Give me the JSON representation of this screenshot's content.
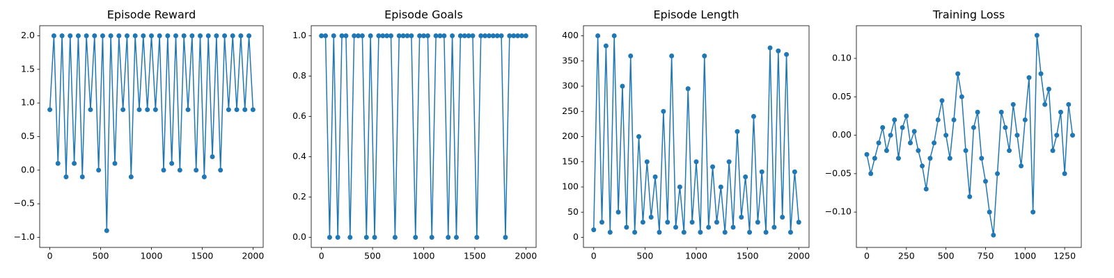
{
  "chart_data": [
    {
      "type": "line",
      "title": "Episode Reward",
      "color": "#1f77b4",
      "x": [
        0,
        40,
        80,
        120,
        160,
        200,
        240,
        280,
        320,
        360,
        400,
        440,
        480,
        520,
        560,
        600,
        640,
        680,
        720,
        760,
        800,
        840,
        880,
        920,
        960,
        1000,
        1040,
        1080,
        1120,
        1160,
        1200,
        1240,
        1280,
        1320,
        1360,
        1400,
        1440,
        1480,
        1520,
        1560,
        1600,
        1640,
        1680,
        1720,
        1760,
        1800,
        1840,
        1880,
        1920,
        1960,
        2000
      ],
      "values": [
        0.9,
        2.0,
        0.1,
        2.0,
        -0.1,
        2.0,
        0.1,
        2.0,
        -0.1,
        2.0,
        0.9,
        2.0,
        0.0,
        2.0,
        -0.9,
        2.0,
        0.1,
        2.0,
        0.9,
        2.0,
        -0.1,
        2.0,
        0.9,
        2.0,
        0.9,
        2.0,
        0.9,
        2.0,
        0.0,
        2.0,
        0.1,
        2.0,
        0.0,
        2.0,
        0.9,
        2.0,
        0.0,
        2.0,
        -0.1,
        2.0,
        0.2,
        2.0,
        0.0,
        2.0,
        0.9,
        2.0,
        0.9,
        2.0,
        0.9,
        2.0,
        0.9
      ],
      "xlim": [
        -100,
        2100
      ],
      "ylim": [
        -1.15,
        2.15
      ],
      "xticks": [
        0,
        500,
        1000,
        1500,
        2000
      ],
      "yticks": [
        {
          "value": -1.0,
          "label": "−1.0"
        },
        {
          "value": -0.5,
          "label": "−0.5"
        },
        {
          "value": 0.0,
          "label": "0.0"
        },
        {
          "value": 0.5,
          "label": "0.5"
        },
        {
          "value": 1.0,
          "label": "1.0"
        },
        {
          "value": 1.5,
          "label": "1.5"
        },
        {
          "value": 2.0,
          "label": "2.0"
        }
      ]
    },
    {
      "type": "line",
      "title": "Episode Goals",
      "color": "#1f77b4",
      "x": [
        0,
        40,
        80,
        120,
        160,
        200,
        240,
        280,
        320,
        360,
        400,
        440,
        480,
        520,
        560,
        600,
        640,
        680,
        720,
        760,
        800,
        840,
        880,
        920,
        960,
        1000,
        1040,
        1080,
        1120,
        1160,
        1200,
        1240,
        1280,
        1320,
        1360,
        1400,
        1440,
        1480,
        1520,
        1560,
        1600,
        1640,
        1680,
        1720,
        1760,
        1800,
        1840,
        1880,
        1920,
        1960,
        2000
      ],
      "values": [
        1,
        1,
        0,
        1,
        0,
        1,
        1,
        0,
        1,
        1,
        1,
        0,
        1,
        0,
        1,
        1,
        1,
        1,
        0,
        1,
        1,
        1,
        1,
        0,
        1,
        1,
        1,
        0,
        1,
        1,
        1,
        0,
        1,
        0,
        1,
        1,
        1,
        1,
        0,
        1,
        1,
        1,
        1,
        1,
        1,
        0,
        1,
        1,
        1,
        1,
        1
      ],
      "xlim": [
        -100,
        2100
      ],
      "ylim": [
        -0.05,
        1.05
      ],
      "xticks": [
        0,
        500,
        1000,
        1500,
        2000
      ],
      "yticks": [
        {
          "value": 0,
          "label": "0.0"
        },
        {
          "value": 0.2,
          "label": "0.2"
        },
        {
          "value": 0.4,
          "label": "0.4"
        },
        {
          "value": 0.6,
          "label": "0.6"
        },
        {
          "value": 0.8,
          "label": "0.8"
        },
        {
          "value": 1,
          "label": "1.0"
        }
      ]
    },
    {
      "type": "line",
      "title": "Episode Length",
      "color": "#1f77b4",
      "x": [
        0,
        40,
        80,
        120,
        160,
        200,
        240,
        280,
        320,
        360,
        400,
        440,
        480,
        520,
        560,
        600,
        640,
        680,
        720,
        760,
        800,
        840,
        880,
        920,
        960,
        1000,
        1040,
        1080,
        1120,
        1160,
        1200,
        1240,
        1280,
        1320,
        1360,
        1400,
        1440,
        1480,
        1520,
        1560,
        1600,
        1640,
        1680,
        1720,
        1760,
        1800,
        1840,
        1880,
        1920,
        1960,
        2000
      ],
      "values": [
        15,
        400,
        30,
        380,
        10,
        400,
        50,
        300,
        20,
        360,
        10,
        200,
        30,
        150,
        40,
        120,
        10,
        250,
        30,
        360,
        20,
        100,
        10,
        295,
        30,
        150,
        10,
        360,
        20,
        140,
        30,
        100,
        10,
        150,
        20,
        210,
        40,
        120,
        10,
        240,
        30,
        130,
        10,
        376,
        20,
        370,
        40,
        363,
        10,
        130,
        30
      ],
      "xlim": [
        -100,
        2100
      ],
      "ylim": [
        -20,
        420
      ],
      "xticks": [
        0,
        500,
        1000,
        1500,
        2000
      ],
      "yticks": [
        0,
        50,
        100,
        150,
        200,
        250,
        300,
        350,
        400
      ]
    },
    {
      "type": "line",
      "title": "Training Loss",
      "color": "#1f77b4",
      "x": [
        0,
        25,
        50,
        75,
        100,
        125,
        150,
        175,
        200,
        225,
        250,
        275,
        300,
        325,
        350,
        375,
        400,
        425,
        450,
        475,
        500,
        525,
        550,
        575,
        600,
        625,
        650,
        675,
        700,
        725,
        750,
        775,
        800,
        825,
        850,
        875,
        900,
        925,
        950,
        975,
        1000,
        1025,
        1050,
        1075,
        1100,
        1125,
        1150,
        1175,
        1200,
        1225,
        1250,
        1275,
        1300
      ],
      "values": [
        -0.025,
        -0.05,
        -0.03,
        -0.01,
        0.01,
        -0.02,
        0.0,
        0.02,
        -0.03,
        0.01,
        0.025,
        -0.01,
        0.005,
        -0.02,
        -0.04,
        -0.07,
        -0.03,
        -0.01,
        0.02,
        0.045,
        0.0,
        -0.03,
        0.02,
        0.08,
        0.05,
        -0.02,
        -0.08,
        0.01,
        0.03,
        -0.03,
        -0.06,
        -0.1,
        -0.13,
        -0.05,
        0.03,
        0.01,
        -0.02,
        0.04,
        0.0,
        -0.04,
        0.02,
        0.075,
        -0.1,
        0.13,
        0.08,
        0.04,
        0.06,
        -0.02,
        0.0,
        0.03,
        -0.05,
        0.04,
        0.0
      ],
      "xlim": [
        -66,
        1355
      ],
      "ylim": [
        -0.146,
        0.1425
      ],
      "xticks": [
        0,
        250,
        500,
        750,
        1000,
        1250
      ],
      "yticks": [
        {
          "value": -0.1,
          "label": "−0.10"
        },
        {
          "value": -0.05,
          "label": "−0.05"
        },
        {
          "value": 0.0,
          "label": "0.00"
        },
        {
          "value": 0.05,
          "label": "0.05"
        },
        {
          "value": 0.1,
          "label": "0.10"
        }
      ]
    }
  ]
}
